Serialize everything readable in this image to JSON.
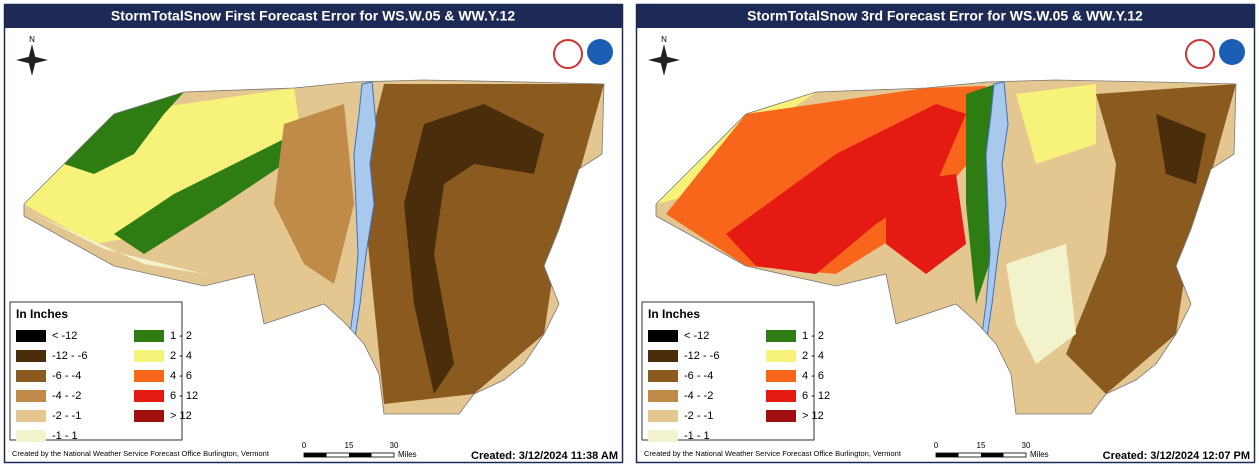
{
  "panels": [
    {
      "title": "StormTotalSnow First Forecast Error for WS.W.05 & WW.Y.12",
      "north": "N",
      "legend": {
        "title": "In Inches",
        "items": [
          {
            "label": "< -12",
            "color": "#000000"
          },
          {
            "label": "-12 - -6",
            "color": "#4a2e0c"
          },
          {
            "label": "-6 - -4",
            "color": "#8b5a1e"
          },
          {
            "label": "-4 - -2",
            "color": "#c08a48"
          },
          {
            "label": "-2 - -1",
            "color": "#e3c690"
          },
          {
            "label": "-1 - 1",
            "color": "#f2f2cc"
          },
          {
            "label": "1 - 2",
            "color": "#2e7d13"
          },
          {
            "label": "2 - 4",
            "color": "#f7f37a"
          },
          {
            "label": "4 - 6",
            "color": "#f7661a"
          },
          {
            "label": "6 - 12",
            "color": "#e51a13"
          },
          {
            "label": "> 12",
            "color": "#a0100e"
          }
        ]
      },
      "scale": {
        "ticks": [
          0,
          15,
          30
        ],
        "unit": "Miles"
      },
      "credit": "Created by the National Weather Service Forecast Office Burlington, Vermont",
      "created": "Created: 3/12/2024 11:38 AM"
    },
    {
      "title": "StormTotalSnow 3rd Forecast Error for WS.W.05 & WW.Y.12",
      "north": "N",
      "legend": {
        "title": "In Inches",
        "items": [
          {
            "label": "< -12",
            "color": "#000000"
          },
          {
            "label": "-12 - -6",
            "color": "#4a2e0c"
          },
          {
            "label": "-6 - -4",
            "color": "#8b5a1e"
          },
          {
            "label": "-4 - -2",
            "color": "#c08a48"
          },
          {
            "label": "-2 - -1",
            "color": "#e3c690"
          },
          {
            "label": "-1 - 1",
            "color": "#f2f2cc"
          },
          {
            "label": "1 - 2",
            "color": "#2e7d13"
          },
          {
            "label": "2 - 4",
            "color": "#f7f37a"
          },
          {
            "label": "4 - 6",
            "color": "#f7661a"
          },
          {
            "label": "6 - 12",
            "color": "#e51a13"
          },
          {
            "label": "> 12",
            "color": "#a0100e"
          }
        ]
      },
      "scale": {
        "ticks": [
          0,
          15,
          30
        ],
        "unit": "Miles"
      },
      "credit": "Created by the National Weather Service Forecast Office Burlington, Vermont",
      "created": "Created: 3/12/2024 12:07 PM"
    }
  ]
}
